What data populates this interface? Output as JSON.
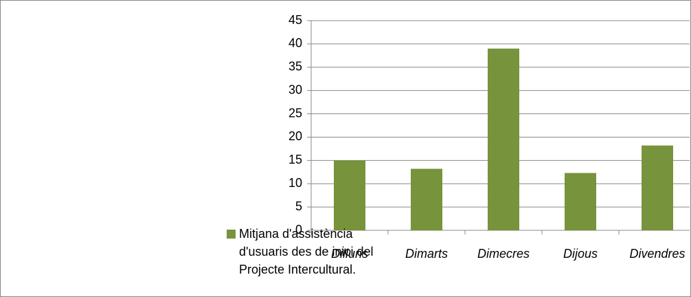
{
  "chart_data": {
    "type": "bar",
    "categories": [
      "Dilluns",
      "Dimarts",
      "Dimecres",
      "Dijous",
      "Divendres"
    ],
    "series": [
      {
        "name": "Mitjana d'assistència d'usuaris des de inici del Projecte Intercultural.",
        "color": "#77933c",
        "values": [
          15,
          13.2,
          39,
          12.3,
          18.2
        ]
      }
    ],
    "ylim": [
      0,
      45
    ],
    "yticks": [
      0,
      5,
      10,
      15,
      20,
      25,
      30,
      35,
      40,
      45
    ],
    "grid": true,
    "legend": "left"
  }
}
